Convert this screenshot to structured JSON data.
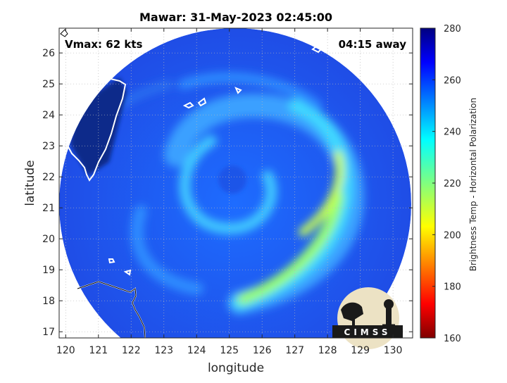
{
  "title": "Mawar: 31-May-2023 02:45:00",
  "vmax_label": "Vmax: 62 kts",
  "time_away_label": "04:15 away",
  "x_axis": {
    "label": "longitude",
    "ticks": [
      120,
      121,
      122,
      123,
      124,
      125,
      126,
      127,
      128,
      129,
      130
    ],
    "range": [
      119.8,
      130.6
    ]
  },
  "y_axis": {
    "label": "latitude",
    "ticks": [
      17,
      18,
      19,
      20,
      21,
      22,
      23,
      24,
      25,
      26
    ],
    "range": [
      16.8,
      26.8
    ]
  },
  "colorbar": {
    "label": "Brightness Temp - Horizontal Polarization",
    "ticks": [
      160,
      180,
      200,
      220,
      240,
      260,
      280
    ],
    "range": [
      160,
      280
    ],
    "colormap": "jet"
  },
  "logo": {
    "text": "CIMSS"
  },
  "chart_data": {
    "type": "heatmap",
    "title": "Mawar: 31-May-2023 02:45:00",
    "xlabel": "longitude",
    "ylabel": "latitude",
    "xlim": [
      119.8,
      130.6
    ],
    "ylim": [
      16.8,
      26.8
    ],
    "storm_center": {
      "lon": 125.0,
      "lat": 22.0
    },
    "value_range": [
      160,
      280
    ],
    "colorbar_label": "Brightness Temp - Horizontal Polarization",
    "annotations": [
      "Vmax: 62 kts",
      "04:15 away"
    ],
    "grid": true
  }
}
